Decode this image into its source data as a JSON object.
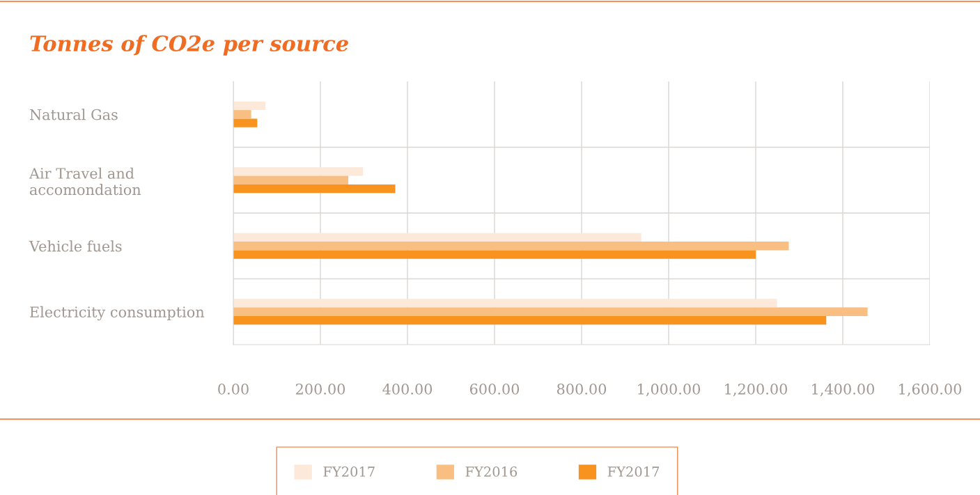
{
  "chart_data": {
    "type": "bar",
    "orientation": "horizontal",
    "title": "Tonnes of CO2e per source",
    "categories": [
      "Natural Gas",
      "Air Travel and\naccomondation",
      "Vehicle fuels",
      "Electricity consumption"
    ],
    "series": [
      {
        "name": "FY2017",
        "color": "#fde9d9",
        "values": [
          74,
          298,
          937,
          1249
        ]
      },
      {
        "name": "FY2016",
        "color": "#f9bf82",
        "values": [
          41,
          264,
          1276,
          1457
        ]
      },
      {
        "name": "FY2017",
        "color": "#f7931e",
        "values": [
          55,
          372,
          1200,
          1362
        ]
      }
    ],
    "xlim": [
      0,
      1600
    ],
    "xticks": [
      {
        "value": 0,
        "label": "0.00"
      },
      {
        "value": 200,
        "label": "200.00"
      },
      {
        "value": 400,
        "label": "400.00"
      },
      {
        "value": 600,
        "label": "600.00"
      },
      {
        "value": 800,
        "label": "800.00"
      },
      {
        "value": 1000,
        "label": "1,000.00"
      },
      {
        "value": 1200,
        "label": "1,200.00"
      },
      {
        "value": 1400,
        "label": "1,400.00"
      },
      {
        "value": 1600,
        "label": "1,600.00"
      }
    ],
    "grid": true,
    "legend": "bottom"
  }
}
